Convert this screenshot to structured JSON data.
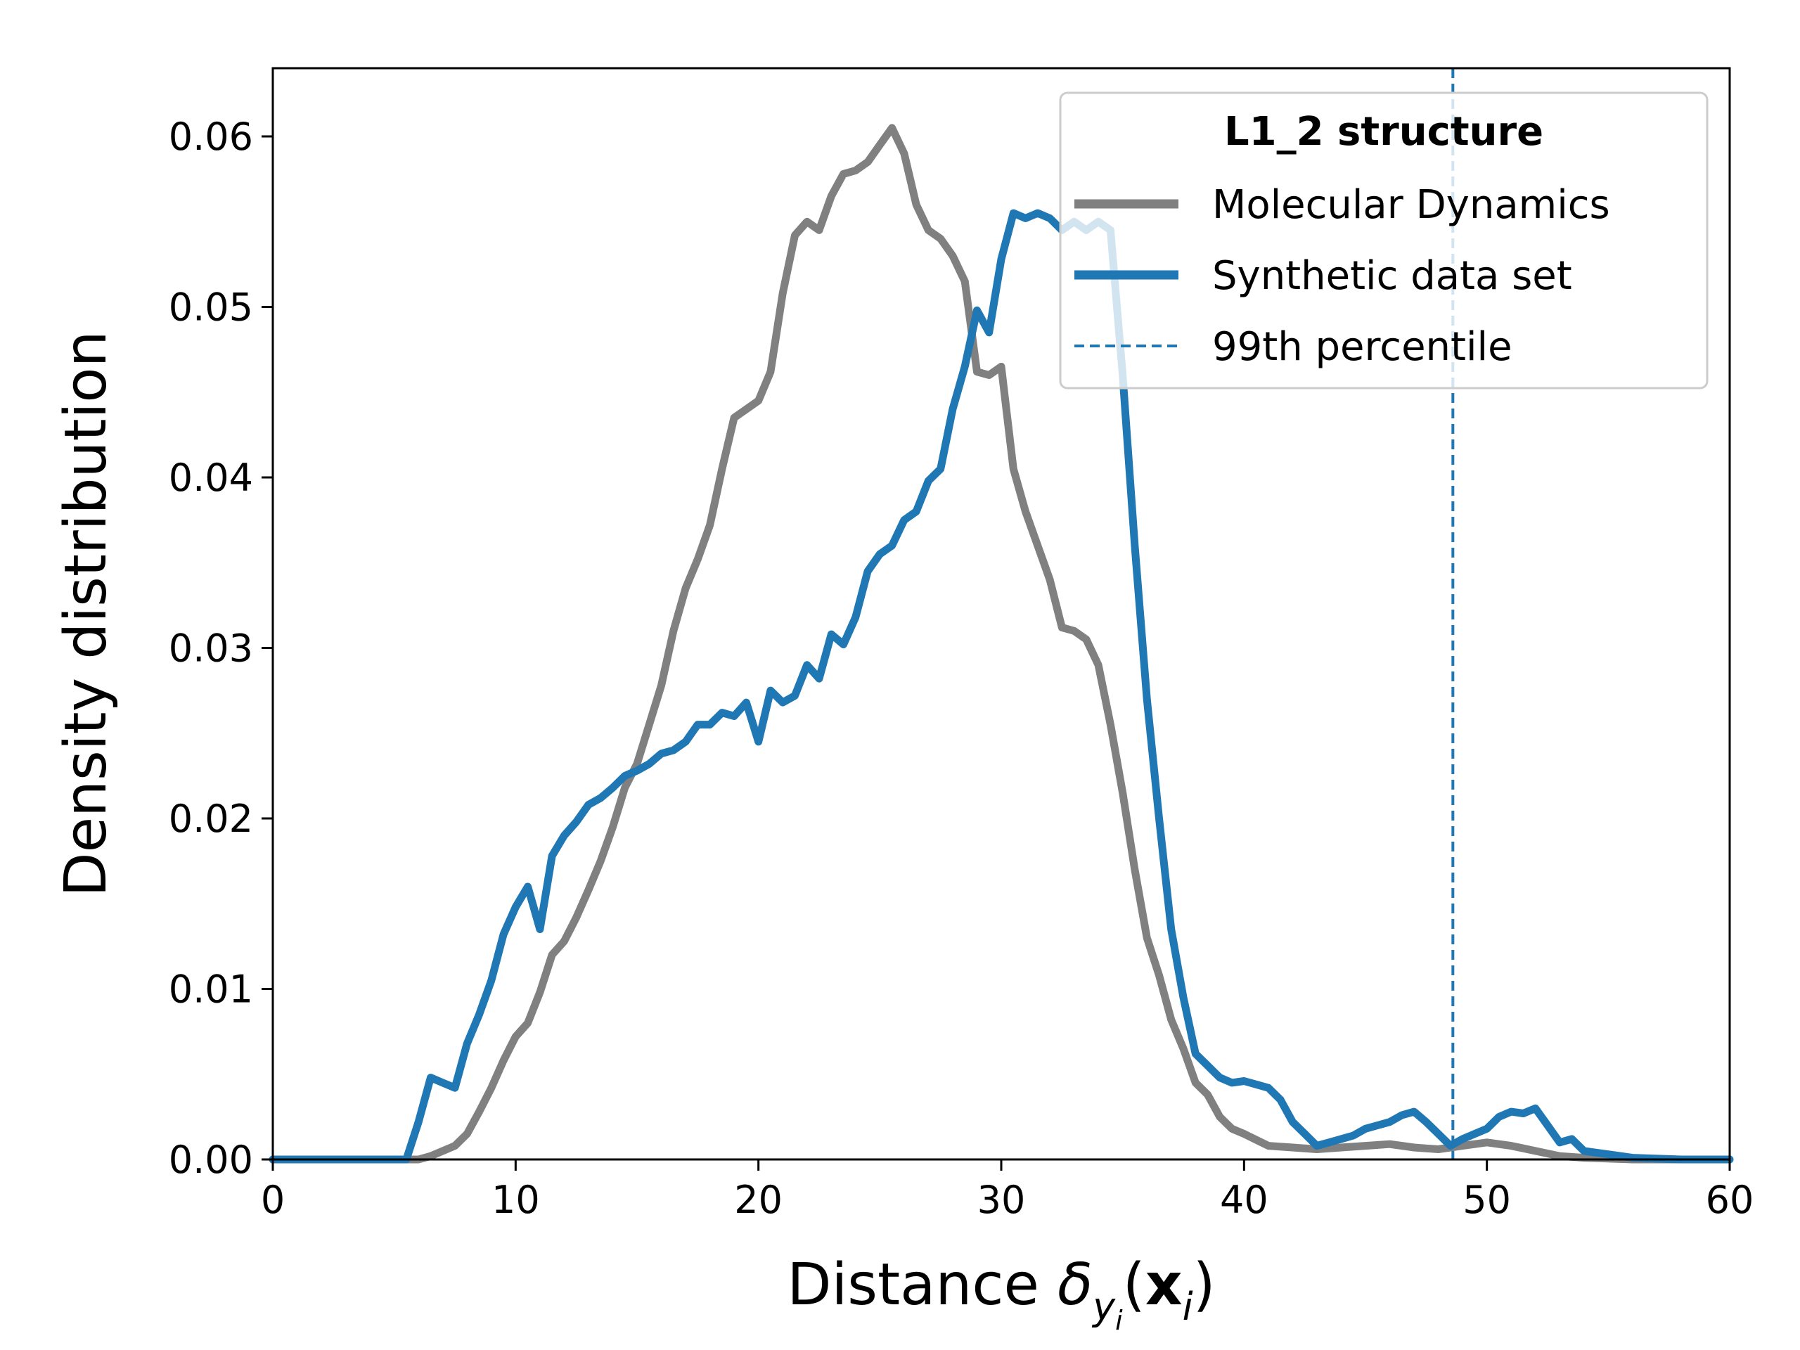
{
  "chart_data": {
    "type": "line",
    "xlabel": "Distance δyi(xi)",
    "ylabel": "Density distribution",
    "xlim": [
      0,
      60
    ],
    "ylim": [
      0,
      0.064
    ],
    "xticks": [
      "0",
      "10",
      "20",
      "30",
      "40",
      "50",
      "60"
    ],
    "yticks": [
      "0.00",
      "0.01",
      "0.02",
      "0.03",
      "0.04",
      "0.05",
      "0.06"
    ],
    "grid": false,
    "legend": {
      "placement": "top-right",
      "title": "L1_2 structure"
    },
    "series": [
      {
        "name": "Molecular Dynamics",
        "color": "#808080",
        "x": [
          0,
          6,
          6.5,
          7,
          7.5,
          8,
          8.5,
          9,
          9.5,
          10,
          10.5,
          11,
          11.5,
          12,
          12.5,
          13,
          13.5,
          14,
          14.5,
          15,
          15.5,
          16,
          16.5,
          17,
          17.5,
          18,
          18.5,
          19,
          19.5,
          20,
          20.5,
          21,
          21.5,
          22,
          22.5,
          23,
          23.5,
          24,
          24.5,
          25,
          25.5,
          26,
          26.5,
          27,
          27.5,
          28,
          28.5,
          29,
          29.5,
          30,
          30.5,
          31,
          31.5,
          32,
          32.5,
          33,
          33.5,
          34,
          34.5,
          35,
          35.5,
          36,
          36.5,
          37,
          37.5,
          38,
          38.5,
          39,
          39.5,
          40,
          41,
          42,
          43,
          44,
          45,
          46,
          47,
          48,
          49,
          50,
          51,
          52,
          53,
          54,
          56,
          58,
          60
        ],
        "values": [
          0,
          0,
          0.0002,
          0.0005,
          0.0008,
          0.0015,
          0.0028,
          0.0042,
          0.0058,
          0.0072,
          0.008,
          0.0098,
          0.012,
          0.0128,
          0.0142,
          0.0158,
          0.0175,
          0.0195,
          0.0218,
          0.0232,
          0.0255,
          0.0278,
          0.031,
          0.0335,
          0.0352,
          0.0372,
          0.0405,
          0.0435,
          0.044,
          0.0445,
          0.0462,
          0.0508,
          0.0542,
          0.055,
          0.0545,
          0.0565,
          0.0578,
          0.058,
          0.0585,
          0.0595,
          0.0605,
          0.059,
          0.056,
          0.0545,
          0.054,
          0.053,
          0.0515,
          0.0462,
          0.046,
          0.0465,
          0.0405,
          0.038,
          0.036,
          0.034,
          0.0312,
          0.031,
          0.0305,
          0.029,
          0.0255,
          0.0215,
          0.017,
          0.013,
          0.0108,
          0.0082,
          0.0065,
          0.0045,
          0.0038,
          0.0025,
          0.0018,
          0.0015,
          0.0008,
          0.0007,
          0.0006,
          0.0007,
          0.0008,
          0.0009,
          0.0007,
          0.0006,
          0.0008,
          0.001,
          0.0008,
          0.0005,
          0.0002,
          0.0001,
          0,
          0,
          0
        ]
      },
      {
        "name": "Synthetic data set",
        "color": "#1f77b4",
        "x": [
          0,
          5.5,
          6,
          6.5,
          7,
          7.5,
          8,
          8.5,
          9,
          9.5,
          10,
          10.5,
          11,
          11.5,
          12,
          12.5,
          13,
          13.5,
          14,
          14.5,
          15,
          15.5,
          16,
          16.5,
          17,
          17.5,
          18,
          18.5,
          19,
          19.5,
          20,
          20.5,
          21,
          21.5,
          22,
          22.5,
          23,
          23.5,
          24,
          24.5,
          25,
          25.5,
          26,
          26.5,
          27,
          27.5,
          28,
          28.5,
          29,
          29.5,
          30,
          30.5,
          31,
          31.5,
          32,
          32.5,
          33,
          33.5,
          34,
          34.5,
          35,
          35.5,
          36,
          36.5,
          37,
          37.5,
          38,
          38.5,
          39,
          39.5,
          40,
          40.5,
          41,
          41.5,
          42,
          42.5,
          43,
          43.5,
          44,
          44.5,
          45,
          45.5,
          46,
          46.5,
          47,
          47.5,
          48,
          48.5,
          49,
          49.5,
          50,
          50.5,
          51,
          51.5,
          52,
          52.5,
          53,
          53.5,
          54,
          55,
          56,
          58,
          60
        ],
        "values": [
          0,
          0,
          0.0022,
          0.0048,
          0.0045,
          0.0042,
          0.0068,
          0.0085,
          0.0105,
          0.0132,
          0.0148,
          0.016,
          0.0135,
          0.0178,
          0.019,
          0.0198,
          0.0208,
          0.0212,
          0.0218,
          0.0225,
          0.0228,
          0.0232,
          0.0238,
          0.024,
          0.0245,
          0.0255,
          0.0255,
          0.0262,
          0.026,
          0.0268,
          0.0245,
          0.0275,
          0.0268,
          0.0272,
          0.029,
          0.0282,
          0.0308,
          0.0302,
          0.0318,
          0.0345,
          0.0355,
          0.036,
          0.0375,
          0.038,
          0.0398,
          0.0405,
          0.044,
          0.0465,
          0.0498,
          0.0485,
          0.0528,
          0.0555,
          0.0552,
          0.0555,
          0.0552,
          0.0545,
          0.055,
          0.0545,
          0.055,
          0.0545,
          0.046,
          0.036,
          0.027,
          0.02,
          0.0135,
          0.0095,
          0.0062,
          0.0055,
          0.0048,
          0.0045,
          0.0046,
          0.0044,
          0.0042,
          0.0035,
          0.0022,
          0.0015,
          0.0008,
          0.001,
          0.0012,
          0.0014,
          0.0018,
          0.002,
          0.0022,
          0.0026,
          0.0028,
          0.0022,
          0.0015,
          0.0008,
          0.0012,
          0.0015,
          0.0018,
          0.0025,
          0.0028,
          0.0027,
          0.003,
          0.002,
          0.001,
          0.0012,
          0.0005,
          0.0003,
          0.0001,
          0,
          0
        ]
      }
    ],
    "reference_lines": [
      {
        "name": "99th percentile",
        "orientation": "vertical",
        "x": 48.6,
        "color": "#1f77b4",
        "style": "dashed"
      }
    ]
  }
}
